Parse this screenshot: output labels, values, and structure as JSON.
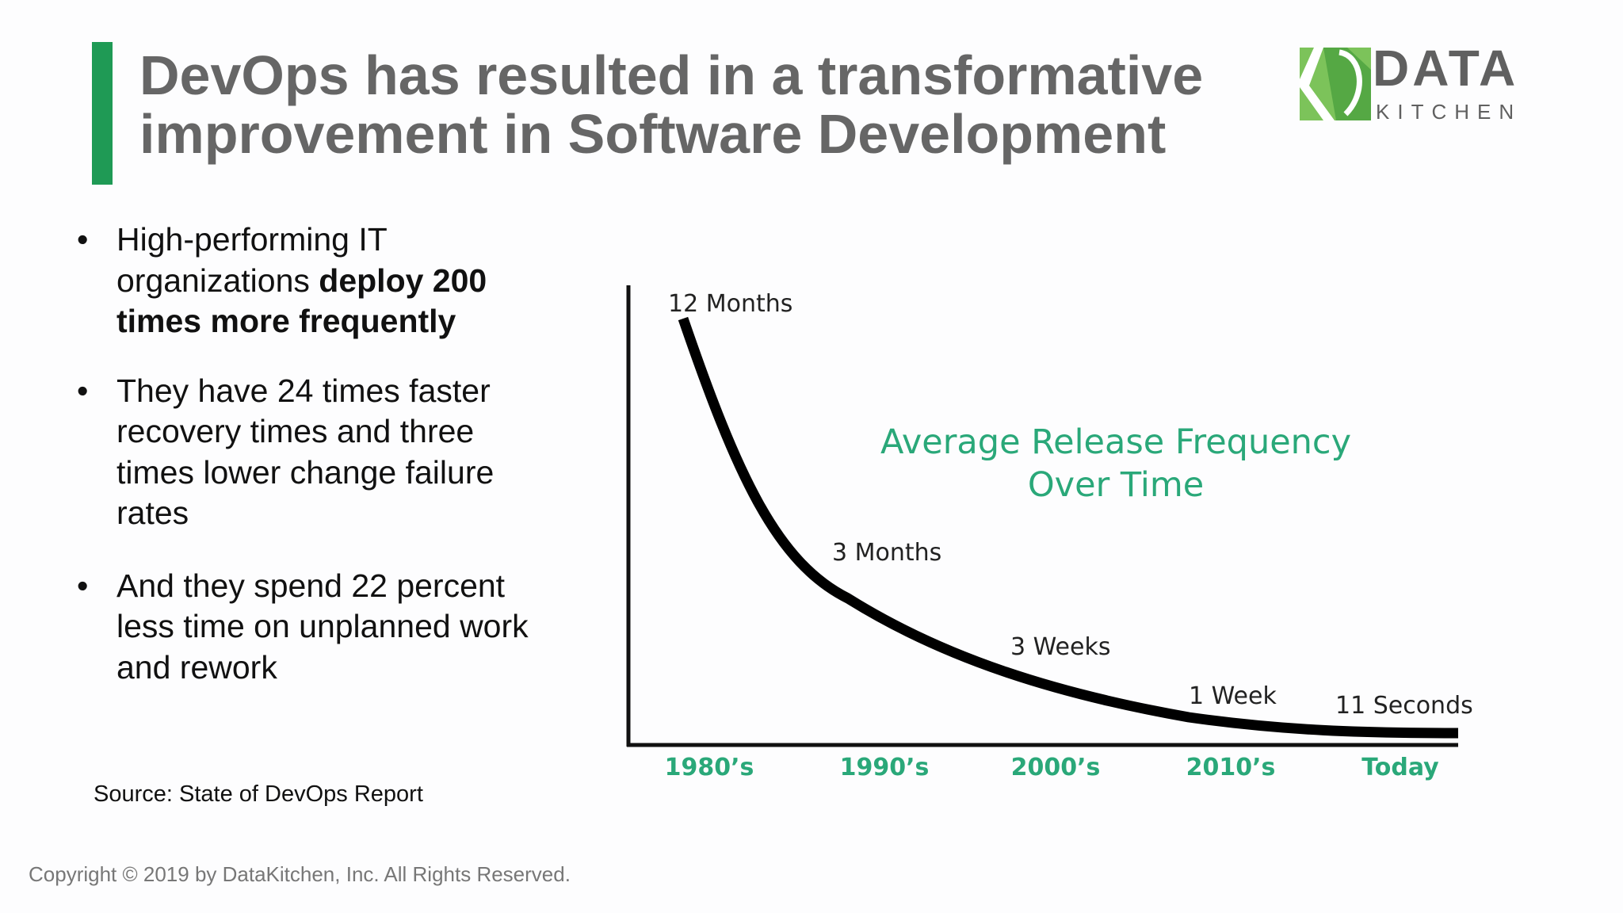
{
  "slide": {
    "title_line1": "DevOps has resulted in a transformative",
    "title_line2": "improvement in Software Development",
    "accent_color": "#1f9a55"
  },
  "logo": {
    "word1": "DATA",
    "word2": "KITCHEN",
    "mark_color": "#7cc35a"
  },
  "bullets": [
    {
      "plain": "High-performing IT organizations ",
      "bold": "deploy 200 times more frequently",
      "tail": ""
    },
    {
      "plain": "They have 24 times faster recovery times and three times lower change failure rates",
      "bold": "",
      "tail": ""
    },
    {
      "plain": "And they spend 22 percent less time on unplanned work and rework",
      "bold": "",
      "tail": ""
    }
  ],
  "bullet_symbol": "•",
  "source": "Source: State of DevOps Report",
  "copyright": "Copyright © 2019 by DataKitchen, Inc.  All Rights Reserved.",
  "chart_data": {
    "type": "line",
    "title_line1": "Average Release Frequency",
    "title_line2": "Over Time",
    "title_color": "#2aa879",
    "line_color": "#000000",
    "categories": [
      "1980’s",
      "1990’s",
      "2000’s",
      "2010’s",
      "Today"
    ],
    "points": [
      {
        "label": "12 Months",
        "category": "1980’s"
      },
      {
        "label": "3 Months",
        "category": "1990’s"
      },
      {
        "label": "3 Weeks",
        "category": "2000’s"
      },
      {
        "label": "1 Week",
        "category": "2010’s"
      },
      {
        "label": "11 Seconds",
        "category": "Today"
      }
    ],
    "y_scale": "unlabeled",
    "grid": false
  }
}
